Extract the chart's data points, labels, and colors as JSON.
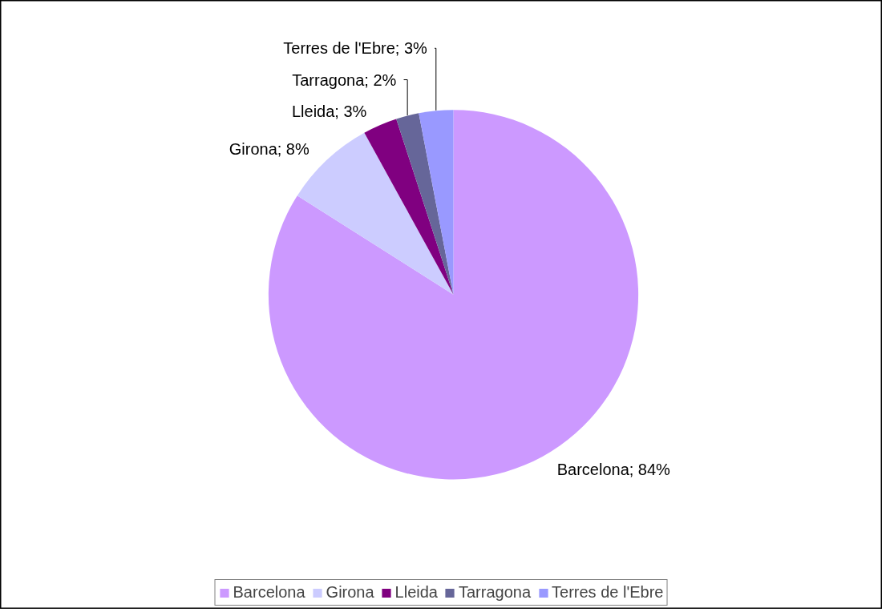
{
  "chart_data": {
    "type": "pie",
    "categories": [
      "Barcelona",
      "Girona",
      "Lleida",
      "Tarragona",
      "Terres de l'Ebre"
    ],
    "values": [
      84,
      8,
      3,
      2,
      3
    ],
    "colors": [
      "#cc99ff",
      "#ccccff",
      "#800080",
      "#666699",
      "#9999ff"
    ],
    "value_labels": [
      "Barcelona; 84%",
      "Girona; 8%",
      "Lleida; 3%",
      "Tarragona; 2%",
      "Terres de l'Ebre; 3%"
    ],
    "legend": "bottom"
  }
}
